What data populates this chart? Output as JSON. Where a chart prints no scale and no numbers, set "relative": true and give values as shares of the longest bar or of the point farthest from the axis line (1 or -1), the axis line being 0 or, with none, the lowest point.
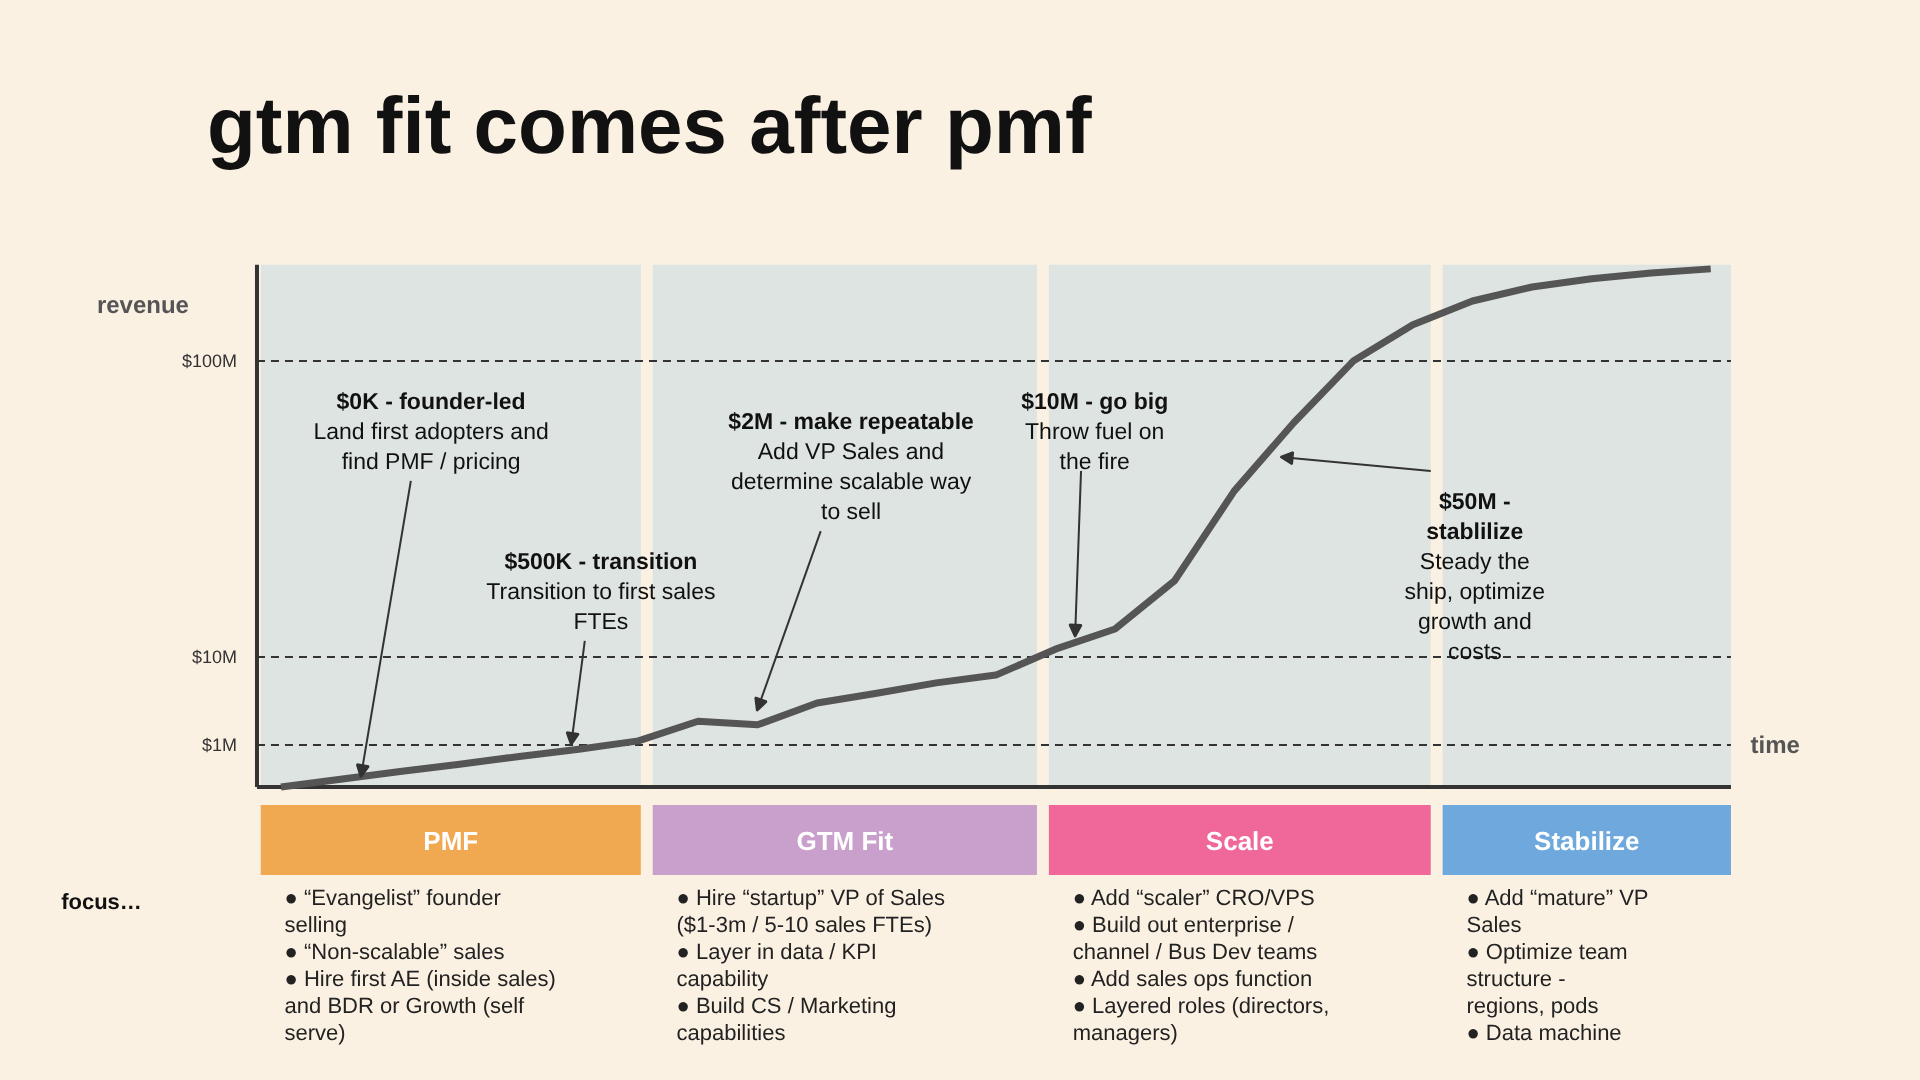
{
  "chart_data": {
    "type": "line",
    "title": "gtm fit comes after pmf",
    "xlabel": "time",
    "ylabel": "revenue",
    "relative": true,
    "categories": [
      null,
      null,
      null,
      null,
      null,
      null,
      null,
      null,
      null,
      null,
      null,
      null,
      null,
      null,
      null,
      null,
      null,
      null,
      null,
      null,
      null,
      null,
      null,
      null,
      null
    ],
    "series": [
      {
        "color": "#555555",
        "values": [
          0,
          0.015,
          0.03,
          0.044,
          0.059,
          0.073,
          0.089,
          0.127,
          0.12,
          0.162,
          0.181,
          0.201,
          0.216,
          0.266,
          0.305,
          0.398,
          0.571,
          0.703,
          0.822,
          0.892,
          0.938,
          0.965,
          0.981,
          0.992,
          1.0
        ]
      }
    ],
    "marker": "none",
    "line_style": "solid",
    "ref_lines": [
      {
        "axis": "y",
        "value": 0.081,
        "label": "$1M",
        "line_style": "dashed"
      },
      {
        "axis": "y",
        "value": 0.251,
        "label": "$10M",
        "line_style": "dashed"
      },
      {
        "axis": "y",
        "value": 0.822,
        "label": "$100M",
        "line_style": "dashed"
      }
    ],
    "annotations": [
      "$0K - founder-led\nLand first adopters and\nfind PMF / pricing",
      "$500K - transition\nTransition to first sales\nFTEs",
      "$2M - make repeatable\nAdd VP Sales and\ndetermine scalable way\nto sell",
      "$10M - go big\nThrow fuel on\nthe fire",
      "$50M -\nstablilize\nSteady the\nship, optimize\ngrowth and\ncosts",
      "PMF",
      "GTM Fit",
      "Scale",
      "Stabilize",
      "focus…",
      "●  “Evangelist” founder\n    selling\n●  “Non-scalable” sales\n●  Hire first AE (inside sales)\n    and BDR or Growth (self\n    serve)",
      "●  Hire “startup” VP of Sales\n    ($1-3m / 5-10 sales FTEs)\n●  Layer in data / KPI\n    capability\n●  Build CS / Marketing\n    capabilities",
      "●  Add “scaler” CRO/VPS\n●  Build out enterprise /\n    channel / Bus Dev teams\n●  Add sales ops function\n●  Layered roles (directors,\n    managers)",
      "●  Add “mature” VP\n    Sales\n●  Optimize team\n    structure -\n    regions, pods\n●  Data machine"
    ]
  }
}
